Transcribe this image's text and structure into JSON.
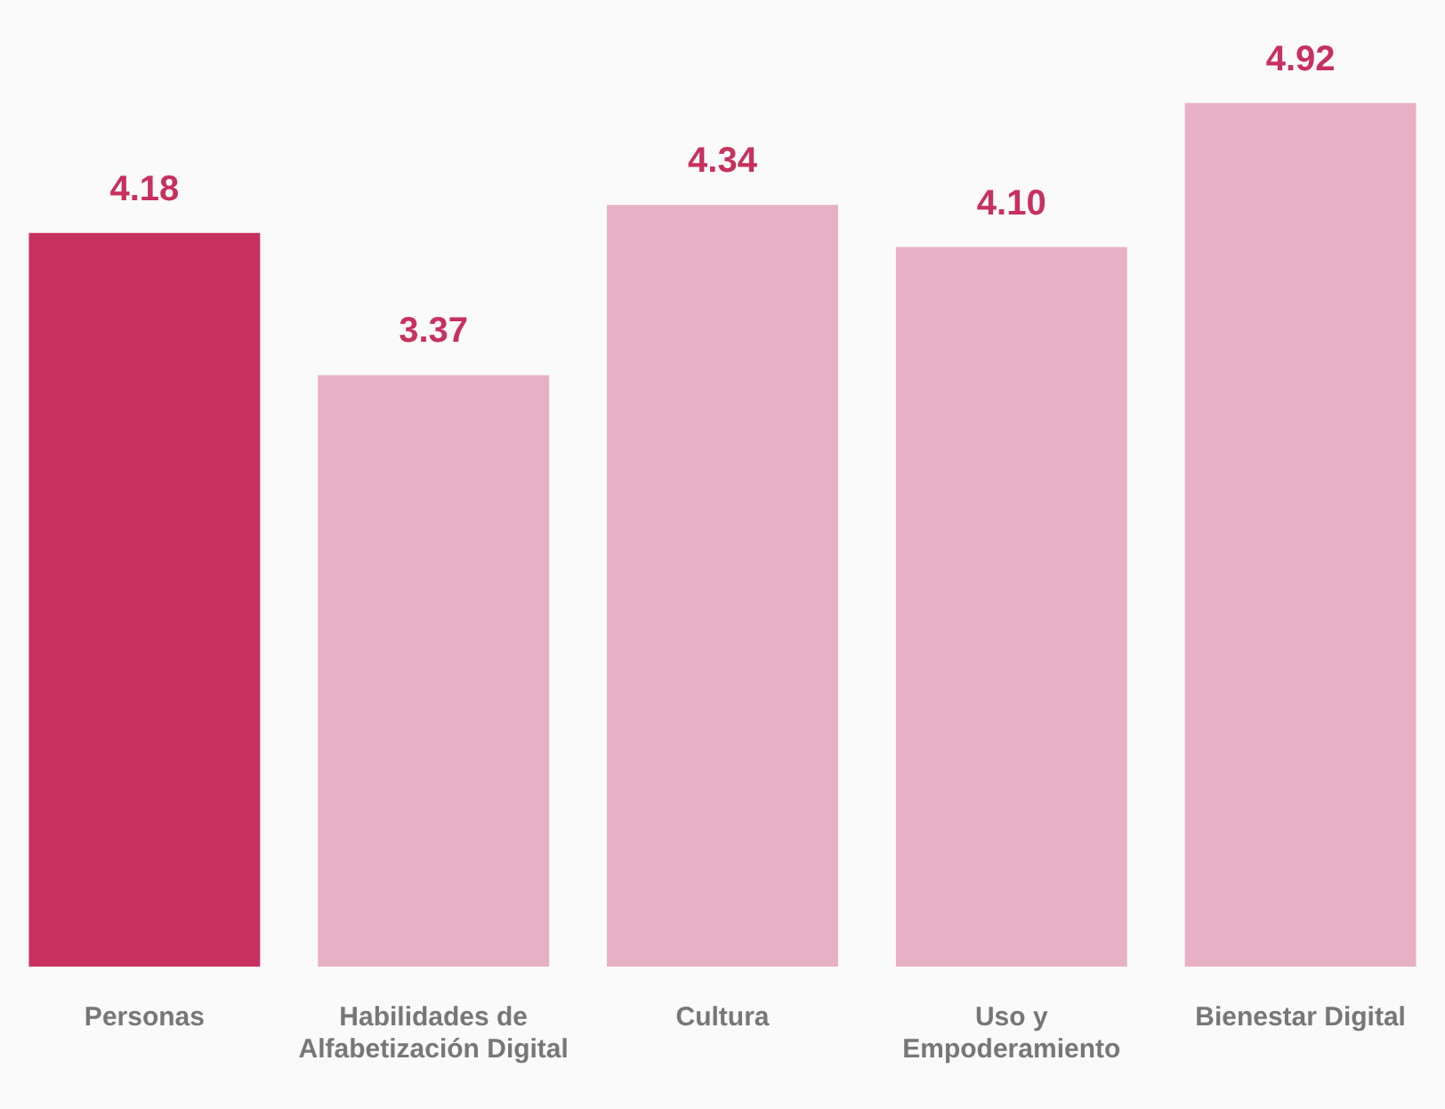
{
  "chart_data": {
    "type": "bar",
    "categories": [
      "Personas",
      "Habilidades de Alfabetización Digital",
      "Cultura",
      "Uso y Empoderamiento",
      "Bienestar Digital"
    ],
    "values": [
      4.18,
      3.37,
      4.34,
      4.1,
      4.92
    ],
    "value_labels": [
      "4.18",
      "3.37",
      "4.34",
      "4.10",
      "4.92"
    ],
    "colors": [
      "#c8305f",
      "#e8b0c4",
      "#e8b0c4",
      "#e8b0c4",
      "#e8b0c4"
    ],
    "tick_labels": "x",
    "grid": false
  }
}
